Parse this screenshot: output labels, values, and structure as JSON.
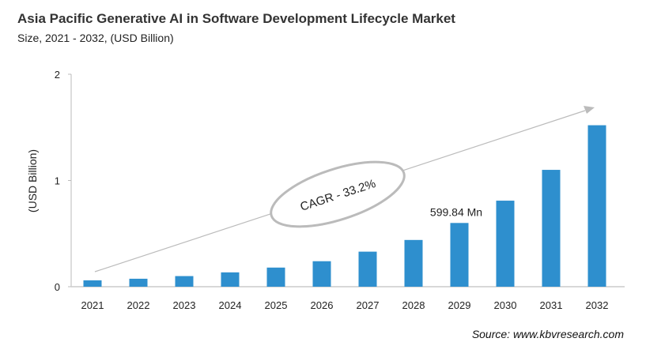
{
  "chart_data": {
    "type": "bar",
    "title": "Asia Pacific Generative AI in Software Development Lifecycle Market",
    "subtitle": "Size, 2021 - 2032, (USD Billion)",
    "xlabel": "",
    "ylabel": "(USD Billion)",
    "ylim": [
      0,
      2
    ],
    "yticks": [
      "0",
      "1",
      "2"
    ],
    "grid": false,
    "categories": [
      "2021",
      "2022",
      "2023",
      "2024",
      "2025",
      "2026",
      "2027",
      "2028",
      "2029",
      "2030",
      "2031",
      "2032"
    ],
    "values": [
      0.06,
      0.075,
      0.1,
      0.135,
      0.18,
      0.24,
      0.33,
      0.44,
      0.6,
      0.81,
      1.1,
      1.52
    ],
    "bar_color": "#2e8fce",
    "annotations": {
      "data_label": "599.84 Mn",
      "data_label_category": "2029",
      "cagr": "CAGR - 33.2%"
    },
    "source": "Source: www.kbvresearch.com"
  }
}
